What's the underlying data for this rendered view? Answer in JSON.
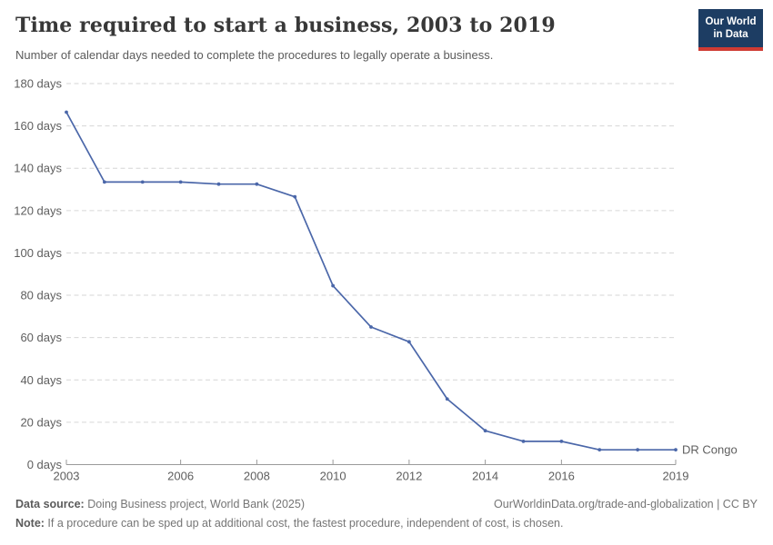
{
  "header": {
    "title": "Time required to start a business, 2003 to 2019",
    "subtitle": "Number of calendar days needed to complete the procedures to legally operate a business.",
    "logo": {
      "line1": "Our World",
      "line2": "in Data",
      "bg_color": "#1d3d63",
      "accent_color": "#cf3b33"
    }
  },
  "chart_data": {
    "type": "line",
    "title": "Time required to start a business, 2003 to 2019",
    "xlabel": "",
    "ylabel": "days",
    "x": [
      2003,
      2004,
      2005,
      2006,
      2007,
      2008,
      2009,
      2010,
      2011,
      2012,
      2013,
      2014,
      2015,
      2016,
      2017,
      2018,
      2019
    ],
    "series": [
      {
        "name": "DR Congo",
        "color": "#4b67a9",
        "values": [
          166.5,
          133.5,
          133.5,
          133.5,
          132.5,
          132.5,
          126.5,
          84.5,
          65,
          58,
          31,
          16,
          11,
          11,
          7,
          7,
          7
        ]
      }
    ],
    "xlim": [
      2003,
      2019
    ],
    "ylim": [
      0,
      180
    ],
    "x_ticks": [
      2003,
      2006,
      2008,
      2010,
      2012,
      2014,
      2016,
      2019
    ],
    "y_ticks": [
      0,
      20,
      40,
      60,
      80,
      100,
      120,
      140,
      160,
      180
    ],
    "y_tick_suffix": " days",
    "grid": "horizontal-dashed",
    "legend_position": "end-of-line"
  },
  "footer": {
    "datasource_label": "Data source:",
    "datasource_text": " Doing Business project, World Bank (2025)",
    "link_text": "OurWorldinData.org/trade-and-globalization | CC BY",
    "note_label": "Note:",
    "note_text": " If a procedure can be sped up at additional cost, the fastest procedure, independent of cost, is chosen."
  }
}
